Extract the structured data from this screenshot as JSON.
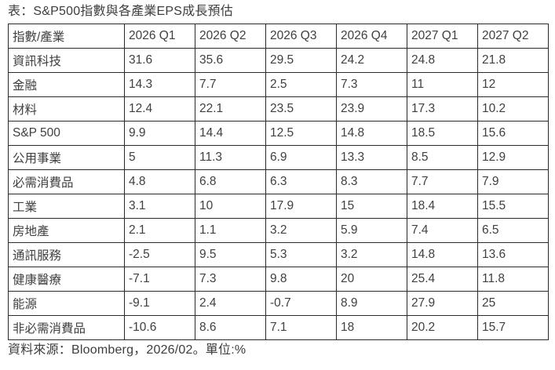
{
  "title": "表：S&P500指數與各產業EPS成長預估",
  "footer": {
    "source_note": "資料來源：Bloomberg，2026/02。單位:%"
  },
  "colors": {
    "text": "#404040",
    "border": "#2b2b2b",
    "background": "#ffffff"
  },
  "chart_data": {
    "type": "table",
    "title": "表：S&P500指數與各產業EPS成長預估",
    "unit": "%",
    "source": "Bloomberg，2026/02",
    "columns": [
      "指數/產業",
      "2026 Q1",
      "2026 Q2",
      "2026 Q3",
      "2026 Q4",
      "2027 Q1",
      "2027 Q2"
    ],
    "rows": [
      {
        "label": "資訊科技",
        "values": [
          31.6,
          35.6,
          29.5,
          24.2,
          24.8,
          21.8
        ]
      },
      {
        "label": "金融",
        "values": [
          14.3,
          7.7,
          2.5,
          7.3,
          11,
          12
        ]
      },
      {
        "label": "材料",
        "values": [
          12.4,
          22.1,
          23.5,
          23.9,
          17.3,
          10.2
        ]
      },
      {
        "label": "S&P 500",
        "values": [
          9.9,
          14.4,
          12.5,
          14.8,
          18.5,
          15.6
        ]
      },
      {
        "label": "公用事業",
        "values": [
          5,
          11.3,
          6.9,
          13.3,
          8.5,
          12.9
        ]
      },
      {
        "label": "必需消費品",
        "values": [
          4.8,
          6.8,
          6.3,
          8.3,
          7.7,
          7.9
        ]
      },
      {
        "label": "工業",
        "values": [
          3.1,
          10,
          17.9,
          15,
          18.4,
          15.5
        ]
      },
      {
        "label": "房地產",
        "values": [
          2.1,
          1.1,
          3.2,
          5.9,
          7.4,
          6.5
        ]
      },
      {
        "label": "通訊服務",
        "values": [
          -2.5,
          9.5,
          5.3,
          3.2,
          14.8,
          13.6
        ]
      },
      {
        "label": "健康醫療",
        "values": [
          -7.1,
          7.3,
          9.8,
          20,
          25.4,
          11.8
        ]
      },
      {
        "label": "能源",
        "values": [
          -9.1,
          2.4,
          -0.7,
          8.9,
          27.9,
          25
        ]
      },
      {
        "label": "非必需消費品",
        "values": [
          -10.6,
          8.6,
          7.1,
          18,
          20.2,
          15.7
        ]
      }
    ]
  }
}
